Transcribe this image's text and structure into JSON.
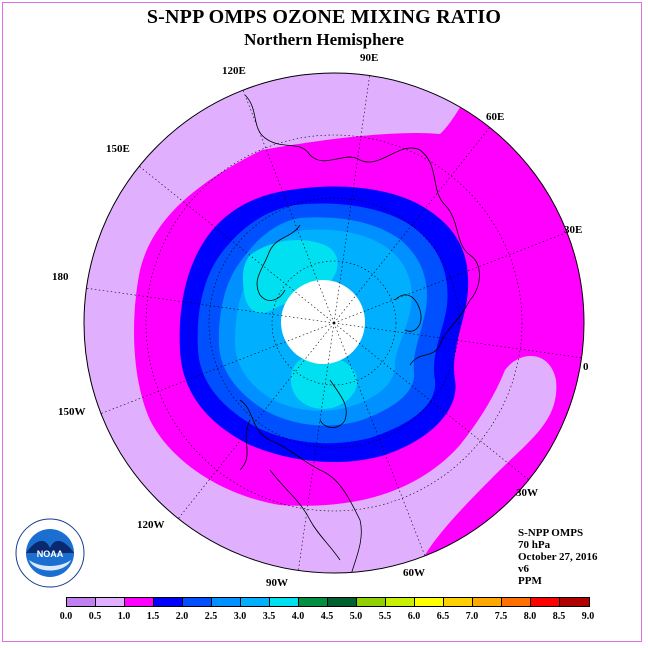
{
  "title": "S-NPP OMPS OZONE MIXING RATIO",
  "subtitle": "Northern Hemisphere",
  "longitude_labels": [
    "90E",
    "60E",
    "30E",
    "0",
    "30W",
    "60W",
    "90W",
    "120W",
    "150W",
    "180",
    "150E",
    "120E"
  ],
  "info": {
    "instrument": "S-NPP OMPS",
    "level": "70 hPa",
    "date": "October 27, 2016",
    "version": "v6",
    "units": "PPM"
  },
  "logo": {
    "text": "NOAA",
    "ring_text": "NATIONAL OCEANIC AND ATMOSPHERIC ADMINISTRATION · U.S. DEPARTMENT OF COMMERCE"
  },
  "colorbar": {
    "ticks": [
      "0.0",
      "0.5",
      "1.0",
      "1.5",
      "2.0",
      "2.5",
      "3.0",
      "3.5",
      "4.0",
      "4.5",
      "5.0",
      "5.5",
      "6.0",
      "6.5",
      "7.0",
      "7.5",
      "8.0",
      "8.5",
      "9.0"
    ],
    "colors": [
      "#c080f0",
      "#e0b0ff",
      "#ff00ff",
      "#0000ff",
      "#0050ff",
      "#0090ff",
      "#00b0ff",
      "#00e0f0",
      "#009040",
      "#006030",
      "#90d000",
      "#c8f000",
      "#ffff00",
      "#ffd000",
      "#ffa800",
      "#ff7000",
      "#ff0000",
      "#b00000",
      "#905030"
    ]
  },
  "map_colors": {
    "background_disk": "#e0b0ff",
    "band_1_0": "#ff00ff",
    "band_1_5": "#0000ff",
    "band_2_0": "#0050ff",
    "band_2_5": "#0090ff",
    "band_3_0": "#00b0ff",
    "band_3_5": "#00e0f0",
    "no_data": "#ffffff"
  }
}
